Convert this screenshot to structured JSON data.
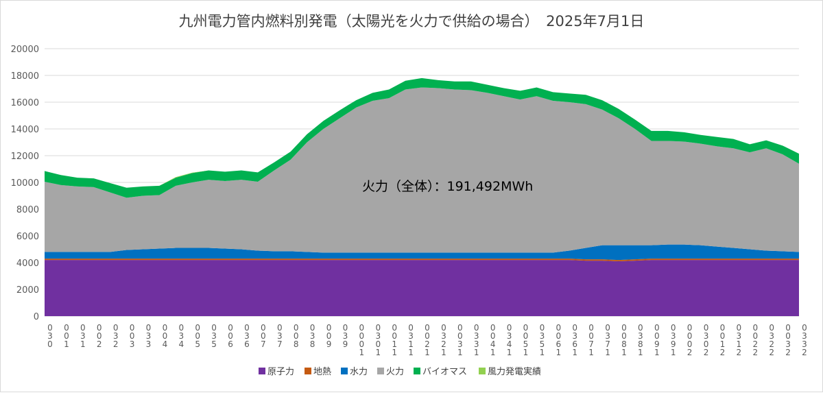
{
  "chart_data": {
    "type": "area",
    "stacked": true,
    "title": "九州電力管内燃料別発電（太陽光を火力で供給の場合）　2025年7月1日",
    "annotation": "火力（全体）：191,492MWh",
    "ylim": [
      0,
      20000
    ],
    "yticks": [
      0,
      2000,
      4000,
      6000,
      8000,
      10000,
      12000,
      14000,
      16000,
      18000,
      20000
    ],
    "grid": true,
    "legend_position": "bottom",
    "x": [
      "0:30",
      "1:00",
      "1:30",
      "2:00",
      "2:30",
      "3:00",
      "3:30",
      "4:00",
      "4:30",
      "5:00",
      "5:30",
      "6:00",
      "6:30",
      "7:00",
      "7:30",
      "8:00",
      "8:30",
      "9:00",
      "9:30",
      "10:00",
      "10:30",
      "11:00",
      "11:30",
      "12:00",
      "12:30",
      "13:00",
      "13:30",
      "14:00",
      "14:30",
      "15:00",
      "15:30",
      "16:00",
      "16:30",
      "17:00",
      "17:30",
      "18:00",
      "18:30",
      "19:00",
      "19:30",
      "20:00",
      "20:30",
      "21:00",
      "21:30",
      "22:00",
      "22:30",
      "23:00",
      "23:30"
    ],
    "series": [
      {
        "name": "原子力",
        "color": "#7030A0",
        "values": [
          4200,
          4200,
          4200,
          4200,
          4200,
          4200,
          4200,
          4200,
          4200,
          4200,
          4200,
          4200,
          4200,
          4200,
          4200,
          4200,
          4200,
          4200,
          4200,
          4200,
          4200,
          4200,
          4200,
          4200,
          4200,
          4200,
          4200,
          4200,
          4200,
          4200,
          4200,
          4200,
          4200,
          4150,
          4150,
          4100,
          4150,
          4200,
          4200,
          4200,
          4200,
          4200,
          4200,
          4200,
          4200,
          4200,
          4200
        ]
      },
      {
        "name": "地熱",
        "color": "#C55A11",
        "values": [
          100,
          100,
          100,
          100,
          100,
          100,
          100,
          100,
          100,
          100,
          100,
          100,
          100,
          100,
          100,
          100,
          100,
          100,
          100,
          100,
          100,
          100,
          100,
          100,
          100,
          100,
          100,
          100,
          100,
          100,
          100,
          100,
          100,
          100,
          100,
          100,
          100,
          100,
          100,
          100,
          100,
          100,
          100,
          100,
          100,
          100,
          100
        ]
      },
      {
        "name": "水力",
        "color": "#0070C0",
        "values": [
          500,
          500,
          500,
          500,
          500,
          650,
          700,
          750,
          800,
          800,
          800,
          750,
          700,
          600,
          550,
          550,
          500,
          450,
          450,
          450,
          450,
          450,
          450,
          450,
          450,
          450,
          450,
          450,
          450,
          450,
          450,
          450,
          600,
          850,
          1050,
          1100,
          1050,
          1000,
          1050,
          1050,
          1000,
          900,
          800,
          700,
          600,
          550,
          500
        ]
      },
      {
        "name": "火力",
        "color": "#A6A6A6",
        "values": [
          5250,
          5000,
          4900,
          4850,
          4450,
          3900,
          4000,
          4000,
          4650,
          4900,
          5100,
          5050,
          5200,
          5150,
          6050,
          6850,
          8200,
          9250,
          10050,
          10850,
          11350,
          11550,
          12200,
          12350,
          12300,
          12200,
          12150,
          11950,
          11700,
          11450,
          11700,
          11350,
          11100,
          10750,
          10150,
          9500,
          8700,
          7800,
          7750,
          7700,
          7600,
          7500,
          7450,
          7250,
          7650,
          7250,
          6600
        ]
      },
      {
        "name": "バイオマス",
        "color": "#00B050",
        "values": [
          800,
          750,
          650,
          650,
          700,
          750,
          700,
          700,
          600,
          700,
          700,
          700,
          700,
          700,
          600,
          600,
          600,
          600,
          600,
          550,
          600,
          650,
          650,
          700,
          600,
          600,
          650,
          600,
          600,
          650,
          650,
          650,
          650,
          700,
          700,
          700,
          700,
          750,
          750,
          700,
          650,
          700,
          700,
          600,
          600,
          650,
          750
        ]
      },
      {
        "name": "風力発電実績",
        "color": "#92D050",
        "values": [
          0,
          0,
          0,
          0,
          0,
          0,
          0,
          0,
          50,
          30,
          0,
          0,
          0,
          0,
          0,
          0,
          0,
          0,
          0,
          0,
          0,
          0,
          0,
          0,
          0,
          0,
          0,
          0,
          0,
          0,
          0,
          0,
          0,
          0,
          0,
          0,
          0,
          0,
          0,
          0,
          0,
          0,
          0,
          0,
          0,
          0,
          0
        ]
      }
    ]
  }
}
